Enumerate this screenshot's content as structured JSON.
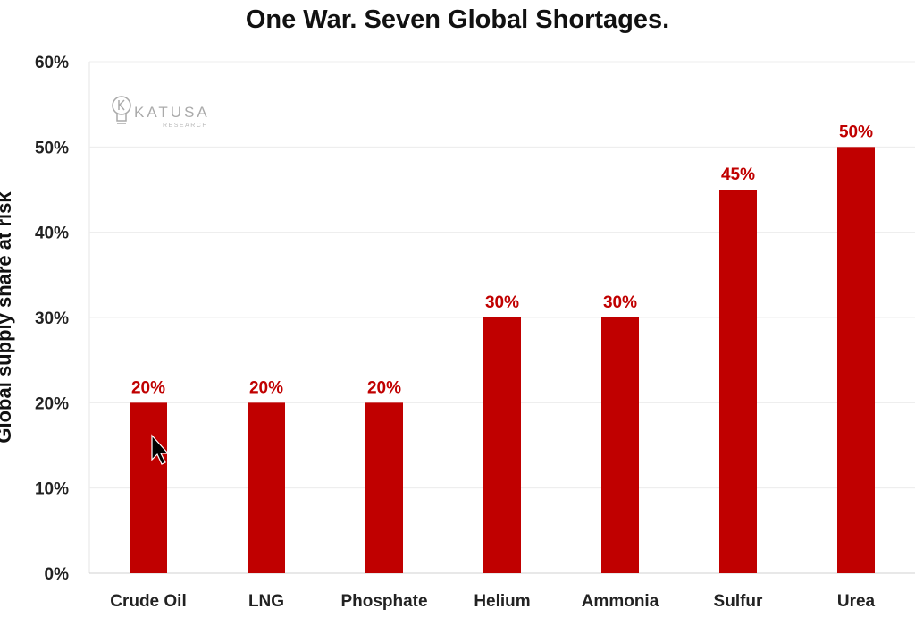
{
  "chart_data": {
    "type": "bar",
    "title": "One War. Seven Global Shortages.",
    "xlabel": "",
    "ylabel": "Global supply share at risk",
    "categories": [
      "Crude Oil",
      "LNG",
      "Phosphate",
      "Helium",
      "Ammonia",
      "Sulfur",
      "Urea"
    ],
    "values": [
      20,
      20,
      20,
      30,
      30,
      45,
      50
    ],
    "data_labels": [
      "20%",
      "20%",
      "20%",
      "30%",
      "30%",
      "45%",
      "50%"
    ],
    "ylim": [
      0,
      60
    ],
    "yticks": [
      0,
      10,
      20,
      30,
      40,
      50,
      60
    ],
    "ytick_labels": [
      "0%",
      "10%",
      "20%",
      "30%",
      "40%",
      "50%",
      "60%"
    ],
    "grid": true,
    "bar_color": "#c00000",
    "label_color": "#c00000"
  },
  "watermark": {
    "name": "KATUSA",
    "sub": "RESEARCH"
  }
}
